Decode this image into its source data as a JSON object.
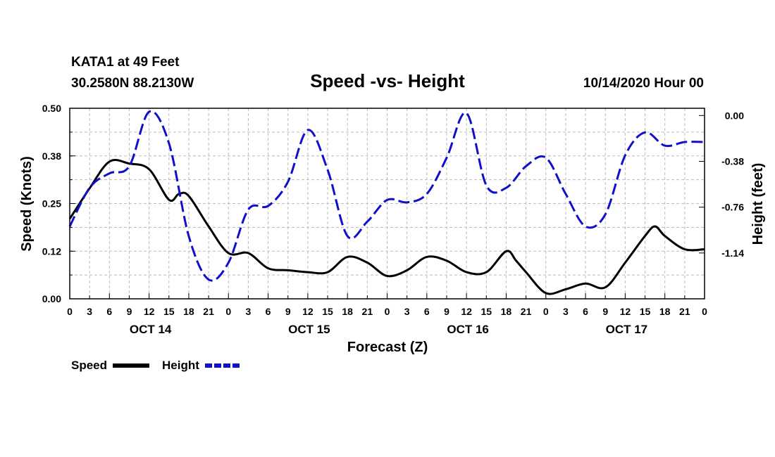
{
  "header": {
    "station": "KATA1 at 49 Feet",
    "coords": "30.2580N 88.2130W",
    "run": "10/14/2020 Hour 00"
  },
  "colors": {
    "speed": "#000000",
    "height": "#1010cc",
    "grid": "#bbbbbb"
  },
  "chart_data": {
    "type": "line",
    "title": "Speed -vs- Height",
    "xlabel": "Forecast (Z)",
    "ylabel": "Speed (Knots)",
    "y2label": "Height (feet)",
    "xlim": [
      0,
      96
    ],
    "ylim": [
      0,
      0.5
    ],
    "y2lim": [
      -1.52,
      0.06
    ],
    "yticks": [
      "0.00",
      "0.12",
      "0.25",
      "0.38",
      "0.50"
    ],
    "yticks_values": [
      0,
      0.125,
      0.25,
      0.375,
      0.5
    ],
    "y2ticks": [
      "0.00",
      "-0.38",
      "-0.76",
      "-1.14"
    ],
    "y2ticks_values": [
      0,
      -0.38,
      -0.76,
      -1.14
    ],
    "xticks": [
      "0",
      "3",
      "6",
      "9",
      "12",
      "15",
      "18",
      "21",
      "0",
      "3",
      "6",
      "9",
      "12",
      "15",
      "18",
      "21",
      "0",
      "3",
      "6",
      "9",
      "12",
      "15",
      "18",
      "21",
      "0",
      "3",
      "6",
      "9",
      "12",
      "15",
      "18",
      "21",
      "0"
    ],
    "day_labels": [
      {
        "label": "OCT 14",
        "hour": 12
      },
      {
        "label": "OCT 15",
        "hour": 36
      },
      {
        "label": "OCT 16",
        "hour": 60
      },
      {
        "label": "OCT 17",
        "hour": 84
      }
    ],
    "legend": [
      "Speed",
      "Height"
    ],
    "series": [
      {
        "name": "Speed",
        "axis": "left",
        "x": [
          0,
          3,
          6,
          9,
          12,
          15,
          16.5,
          18,
          21,
          24,
          27,
          30,
          33,
          36,
          39,
          42,
          45,
          48,
          51,
          54,
          57,
          60,
          63,
          66,
          67.5,
          69,
          72,
          75,
          78,
          81,
          84,
          87,
          88.5,
          90,
          93,
          96
        ],
        "values": [
          0.21,
          0.29,
          0.36,
          0.355,
          0.34,
          0.26,
          0.275,
          0.27,
          0.19,
          0.12,
          0.12,
          0.08,
          0.075,
          0.07,
          0.07,
          0.11,
          0.095,
          0.06,
          0.075,
          0.11,
          0.1,
          0.07,
          0.07,
          0.125,
          0.1,
          0.07,
          0.015,
          0.025,
          0.04,
          0.03,
          0.095,
          0.165,
          0.19,
          0.165,
          0.13,
          0.13
        ]
      },
      {
        "name": "Height",
        "axis": "right",
        "x": [
          0,
          3,
          6,
          9,
          12,
          15,
          18,
          21,
          24,
          27,
          30,
          33,
          36,
          39,
          42,
          45,
          48,
          51,
          54,
          57,
          60,
          63,
          66,
          69,
          72,
          75,
          78,
          81,
          84,
          87,
          90,
          93,
          96
        ],
        "values": [
          -0.92,
          -0.6,
          -0.48,
          -0.42,
          0.03,
          -0.23,
          -1.0,
          -1.36,
          -1.22,
          -0.78,
          -0.75,
          -0.55,
          -0.12,
          -0.45,
          -1.0,
          -0.88,
          -0.7,
          -0.72,
          -0.65,
          -0.35,
          0.02,
          -0.58,
          -0.6,
          -0.42,
          -0.35,
          -0.65,
          -0.92,
          -0.82,
          -0.33,
          -0.14,
          -0.25,
          -0.22,
          -0.22
        ]
      }
    ]
  }
}
